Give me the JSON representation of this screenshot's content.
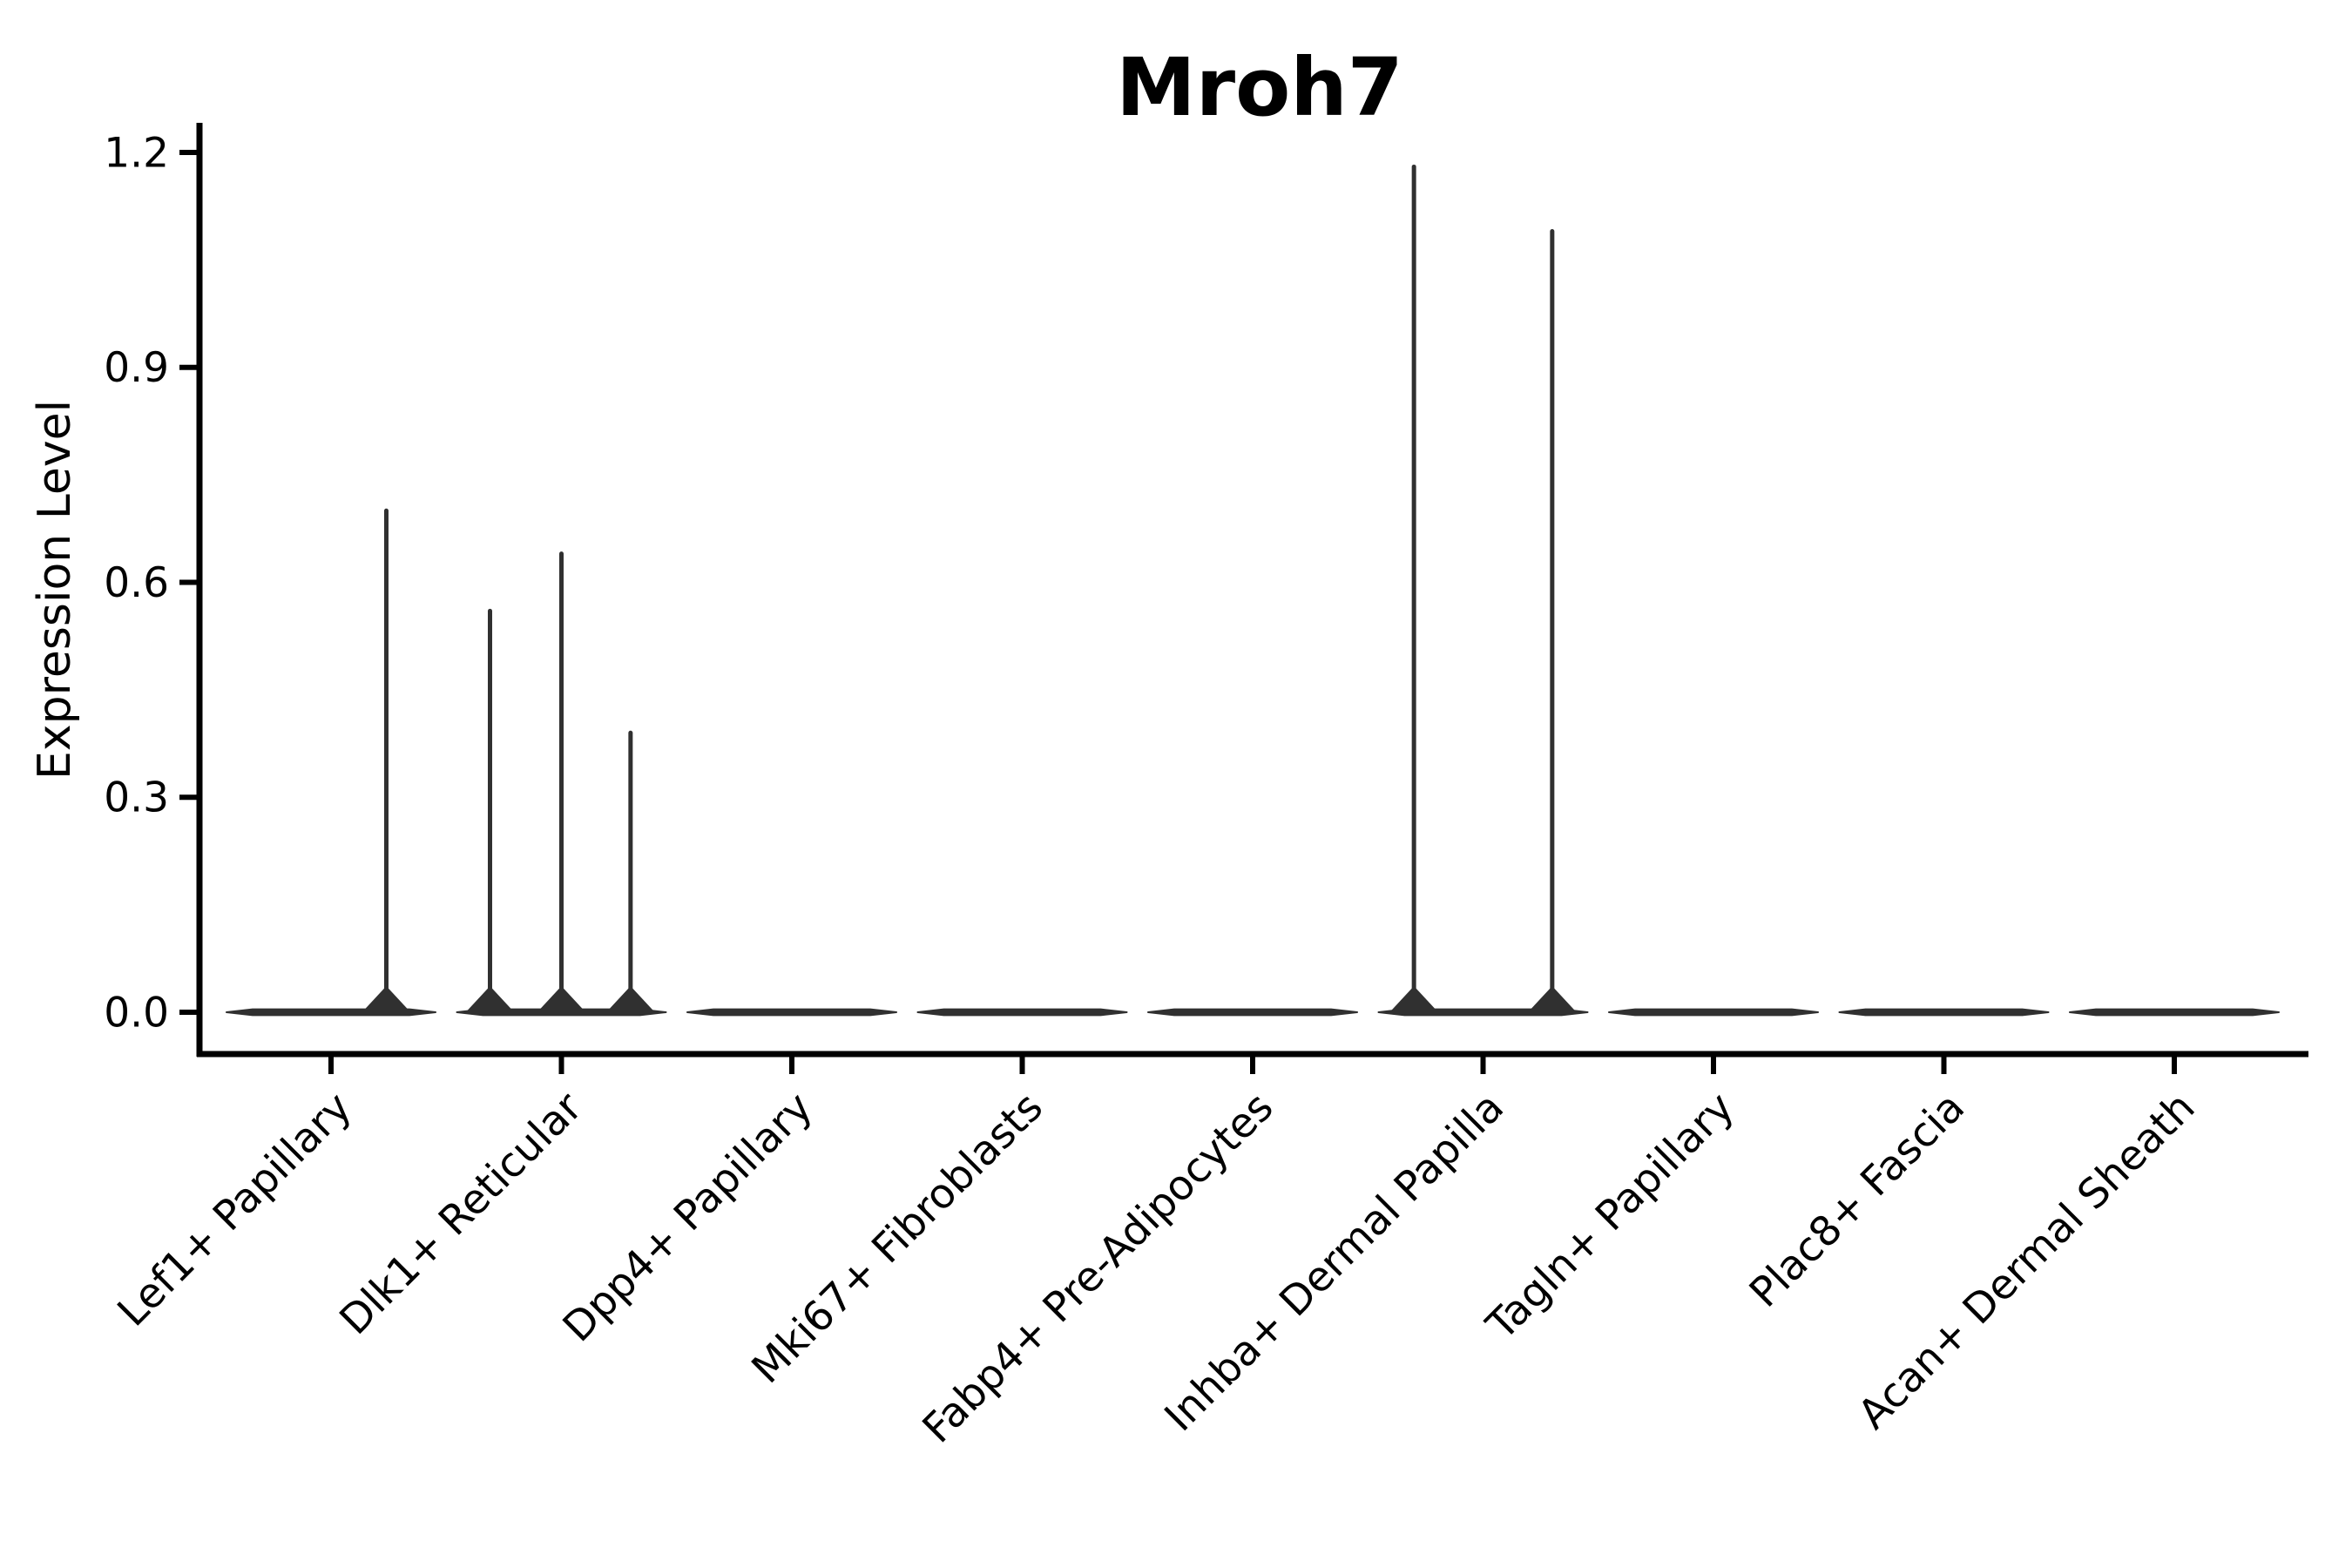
{
  "figure": {
    "background": "#ffffff"
  },
  "chart_data": {
    "type": "violin",
    "title": "Mroh7",
    "xlabel": "",
    "ylabel": "Expression Level",
    "grid": false,
    "legend": false,
    "x_tick_rotation_deg": 45,
    "ylim": [
      -0.06,
      1.24
    ],
    "yticks": [
      {
        "label": "0.0",
        "value": 0.0
      },
      {
        "label": "0.3",
        "value": 0.3
      },
      {
        "label": "0.6",
        "value": 0.6
      },
      {
        "label": "0.9",
        "value": 0.9
      },
      {
        "label": "1.2",
        "value": 1.2
      }
    ],
    "categories": [
      "Lef1+ Papillary",
      "Dlk1+ Reticular",
      "Dpp4+ Papillary",
      "Mki67+ Fibroblasts",
      "Fabp4+ Pre-Adipocytes",
      "Inhba+ Dermal Papilla",
      "Tagln+ Papillary",
      "Plac8+ Fascia",
      "Acan+ Dermal Sheath"
    ],
    "violins": [
      {
        "category": "Lef1+ Papillary",
        "baseline": 0.0,
        "max": 0.7,
        "spikes": [
          {
            "offset": 0.24,
            "value": 0.7
          }
        ]
      },
      {
        "category": "Dlk1+ Reticular",
        "baseline": 0.0,
        "max": 0.64,
        "spikes": [
          {
            "offset": -0.31,
            "value": 0.56
          },
          {
            "offset": 0.0,
            "value": 0.64
          },
          {
            "offset": 0.3,
            "value": 0.39
          }
        ]
      },
      {
        "category": "Dpp4+ Papillary",
        "baseline": 0.0,
        "max": 0.0,
        "spikes": []
      },
      {
        "category": "Mki67+ Fibroblasts",
        "baseline": 0.0,
        "max": 0.0,
        "spikes": []
      },
      {
        "category": "Fabp4+ Pre-Adipocytes",
        "baseline": 0.0,
        "max": 0.0,
        "spikes": []
      },
      {
        "category": "Inhba+ Dermal Papilla",
        "baseline": 0.0,
        "max": 1.18,
        "spikes": [
          {
            "offset": -0.3,
            "value": 1.18
          },
          {
            "offset": 0.3,
            "value": 1.09
          }
        ]
      },
      {
        "category": "Tagln+ Papillary",
        "baseline": 0.0,
        "max": 0.0,
        "spikes": []
      },
      {
        "category": "Plac8+ Fascia",
        "baseline": 0.0,
        "max": 0.0,
        "spikes": []
      },
      {
        "category": "Acan+ Dermal Sheath",
        "baseline": 0.0,
        "max": 0.0,
        "spikes": []
      }
    ],
    "colors": {
      "violin_stroke": "#303030",
      "axis": "#000000",
      "text": "#000000",
      "background": "#ffffff"
    }
  }
}
